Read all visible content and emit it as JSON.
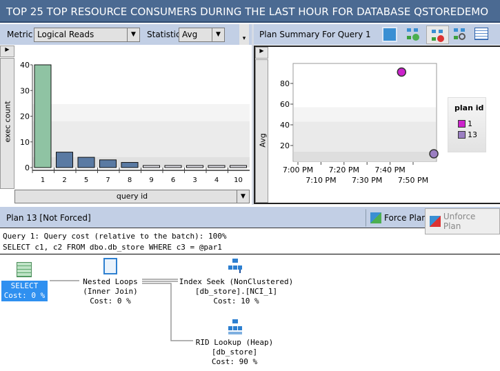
{
  "title": "TOP 25 TOP RESOURCE CONSUMERS DURING THE LAST HOUR FOR DATABASE QSTOREDEMO",
  "left_toolbar": {
    "metric_label": "Metric",
    "metric_value": "Logical Reads",
    "statistic_label": "Statistic",
    "statistic_value": "Avg"
  },
  "right_toolbar": {
    "title": "Plan Summary For Query 1",
    "icons": [
      "refresh-icon",
      "force-plan-icon",
      "unforce-plan-icon",
      "compare-plans-icon",
      "grid-view-icon"
    ]
  },
  "chart_data": [
    {
      "type": "bar",
      "ylabel": "exec count",
      "xlabel": "query id",
      "ylim": [
        0,
        40
      ],
      "yticks": [
        "0",
        "10",
        "20",
        "30",
        "40"
      ],
      "categories": [
        "1",
        "2",
        "5",
        "7",
        "8",
        "9",
        "6",
        "3",
        "4",
        "10"
      ],
      "values": [
        40,
        6,
        4,
        3,
        2,
        1,
        1,
        1,
        1,
        1
      ],
      "colors": {
        "highlight": "#8fc3a3",
        "normal": "#5a7aa3"
      }
    },
    {
      "type": "scatter",
      "ylabel": "Avg",
      "yticks": [
        "20",
        "40",
        "60",
        "80"
      ],
      "xticks_top": [
        "7:00 PM",
        "7:20 PM",
        "7:40 PM"
      ],
      "xticks_bottom": [
        "7:10 PM",
        "7:30 PM",
        "7:50 PM"
      ],
      "legend": {
        "title": "plan id",
        "position": "right"
      },
      "series": [
        {
          "name": "1",
          "color": "#cc22cc",
          "points": [
            {
              "x_min": 45,
              "y": 91
            }
          ]
        },
        {
          "name": "13",
          "color": "#9b7fc2",
          "points": [
            {
              "x_min": 59,
              "y": 12
            }
          ]
        }
      ]
    }
  ],
  "plan_header": {
    "title": "Plan 13 [Not Forced]",
    "force": "Force Plan",
    "unforce": "Unforce Plan"
  },
  "query": {
    "line1": "Query 1: Query cost (relative to the batch): 100%",
    "line2": "SELECT c1, c2 FROM dbo.db_store WHERE c3 = @par1"
  },
  "nodes": {
    "select": {
      "l1": "SELECT",
      "l2": "Cost: 0 %"
    },
    "nested": {
      "l1": "Nested Loops",
      "l2": "(Inner Join)",
      "l3": "Cost: 0 %"
    },
    "seek": {
      "l1": "Index Seek (NonClustered)",
      "l2": "[db_store].[NCI_1]",
      "l3": "Cost: 10 %"
    },
    "rid": {
      "l1": "RID Lookup (Heap)",
      "l2": "[db_store]",
      "l3": "Cost: 90 %"
    }
  }
}
